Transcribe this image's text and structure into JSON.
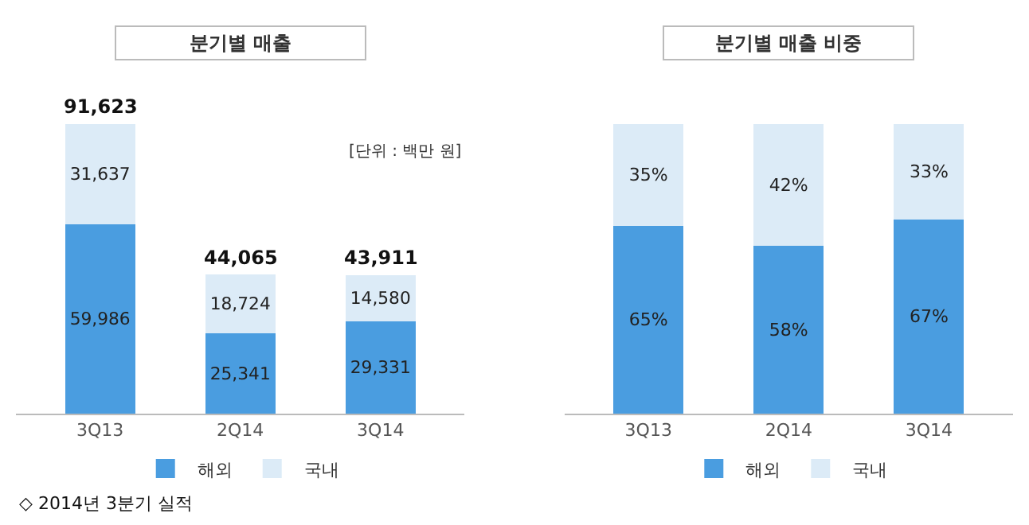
{
  "chart_data": [
    {
      "type": "bar",
      "title": "분기별 매출",
      "stacked": true,
      "categories": [
        "3Q13",
        "2Q14",
        "3Q14"
      ],
      "series": [
        {
          "name": "해외",
          "color": "#4a9de0",
          "values": [
            59986,
            25341,
            29331
          ],
          "value_labels": [
            "59,986",
            "25,341",
            "29,331"
          ]
        },
        {
          "name": "국내",
          "color": "#dcebf7",
          "values": [
            31637,
            18724,
            14580
          ],
          "value_labels": [
            "31,637",
            "18,724",
            "14,580"
          ]
        }
      ],
      "totals": [
        "91,623",
        "44,065",
        "43,911"
      ],
      "annotations": [
        "[단위 : 백만 원]",
        "◇ 2014년 3분기 실적"
      ],
      "legend": "bottom",
      "tick_labels": "x"
    },
    {
      "type": "bar",
      "title": "분기별 매출 비중",
      "stacked": true,
      "categories": [
        "3Q13",
        "2Q14",
        "3Q14"
      ],
      "series": [
        {
          "name": "해외",
          "color": "#4a9de0",
          "values": [
            65,
            58,
            67
          ],
          "value_labels": [
            "65%",
            "58%",
            "67%"
          ]
        },
        {
          "name": "국내",
          "color": "#dcebf7",
          "values": [
            35,
            42,
            33
          ],
          "value_labels": [
            "35%",
            "42%",
            "33%"
          ]
        }
      ],
      "legend": "bottom",
      "tick_labels": "x"
    }
  ]
}
